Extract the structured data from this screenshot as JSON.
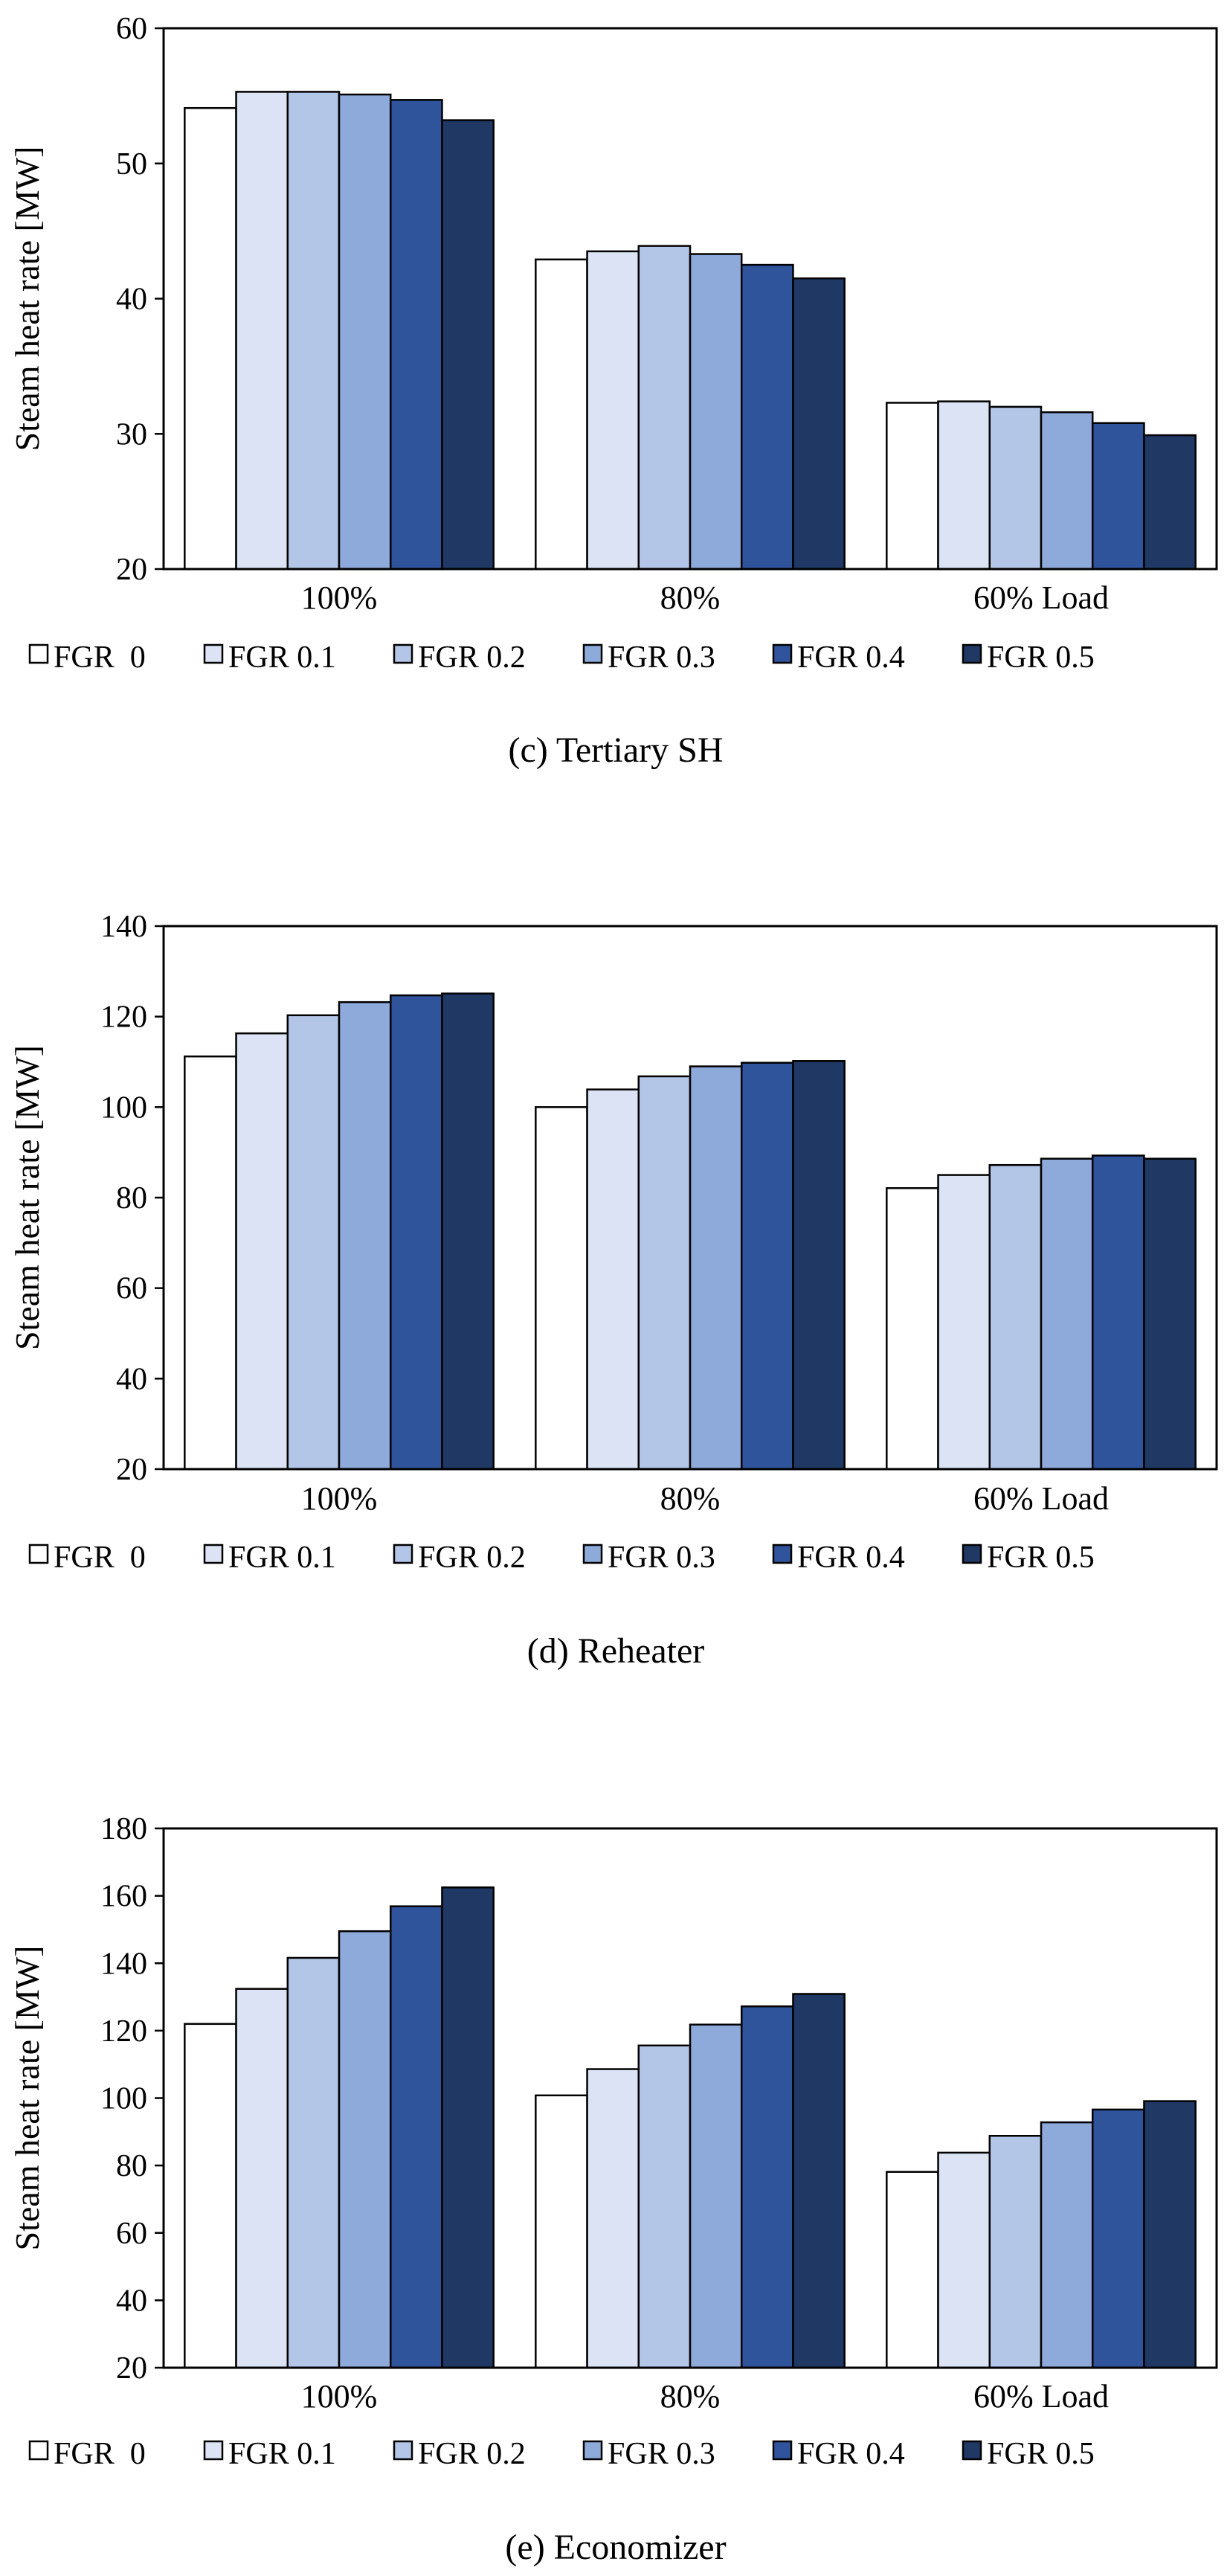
{
  "chart_data": [
    {
      "type": "bar",
      "panel": "c",
      "caption": "(c) Tertiary SH",
      "ylabel": "Steam heat rate [MW]",
      "xlabel": "",
      "ylim": [
        20,
        60
      ],
      "yticks": [
        20,
        30,
        40,
        50,
        60
      ],
      "categories": [
        "100%",
        "80%",
        "60% Load"
      ],
      "series": [
        {
          "name": "FGR  0",
          "color": "#ffffff",
          "values": [
            54.1,
            42.9,
            32.3
          ]
        },
        {
          "name": "FGR 0.1",
          "color": "#dbe3f4",
          "values": [
            55.3,
            43.5,
            32.4
          ]
        },
        {
          "name": "FGR 0.2",
          "color": "#b4c6e7",
          "values": [
            55.3,
            43.9,
            32.0
          ]
        },
        {
          "name": "FGR 0.3",
          "color": "#8eaadb",
          "values": [
            55.1,
            43.3,
            31.6
          ]
        },
        {
          "name": "FGR 0.4",
          "color": "#2f549c",
          "values": [
            54.7,
            42.5,
            30.8
          ]
        },
        {
          "name": "FGR 0.5",
          "color": "#1f3864",
          "values": [
            53.2,
            41.5,
            29.9
          ]
        }
      ],
      "legend": "bottom"
    },
    {
      "type": "bar",
      "panel": "d",
      "caption": "(d) Reheater",
      "ylabel": "Steam heat rate [MW]",
      "xlabel": "",
      "ylim": [
        20,
        140
      ],
      "yticks": [
        20,
        40,
        60,
        80,
        100,
        120,
        140
      ],
      "categories": [
        "100%",
        "80%",
        "60% Load"
      ],
      "series": [
        {
          "name": "FGR  0",
          "color": "#ffffff",
          "values": [
            111.2,
            100.0,
            82.1
          ]
        },
        {
          "name": "FGR 0.1",
          "color": "#dbe3f4",
          "values": [
            116.3,
            103.9,
            85.0
          ]
        },
        {
          "name": "FGR 0.2",
          "color": "#b4c6e7",
          "values": [
            120.3,
            106.8,
            87.2
          ]
        },
        {
          "name": "FGR 0.3",
          "color": "#8eaadb",
          "values": [
            123.2,
            109.0,
            88.6
          ]
        },
        {
          "name": "FGR 0.4",
          "color": "#2f549c",
          "values": [
            124.7,
            109.8,
            89.3
          ]
        },
        {
          "name": "FGR 0.5",
          "color": "#1f3864",
          "values": [
            125.1,
            110.2,
            88.6
          ]
        }
      ],
      "legend": "bottom"
    },
    {
      "type": "bar",
      "panel": "e",
      "caption": "(e) Economizer",
      "ylabel": "Steam heat rate [MW]",
      "xlabel": "",
      "ylim": [
        20,
        180
      ],
      "yticks": [
        20,
        40,
        60,
        80,
        100,
        120,
        140,
        160,
        180
      ],
      "categories": [
        "100%",
        "80%",
        "60% Load"
      ],
      "series": [
        {
          "name": "FGR  0",
          "color": "#ffffff",
          "values": [
            122.0,
            100.8,
            78.1
          ]
        },
        {
          "name": "FGR 0.1",
          "color": "#dbe3f4",
          "values": [
            132.4,
            108.6,
            83.8
          ]
        },
        {
          "name": "FGR 0.2",
          "color": "#b4c6e7",
          "values": [
            141.6,
            115.6,
            88.8
          ]
        },
        {
          "name": "FGR 0.3",
          "color": "#8eaadb",
          "values": [
            149.5,
            121.8,
            92.8
          ]
        },
        {
          "name": "FGR 0.4",
          "color": "#2f549c",
          "values": [
            156.9,
            127.2,
            96.6
          ]
        },
        {
          "name": "FGR 0.5",
          "color": "#1f3864",
          "values": [
            162.5,
            130.9,
            99.1
          ]
        }
      ],
      "legend": "bottom"
    }
  ]
}
